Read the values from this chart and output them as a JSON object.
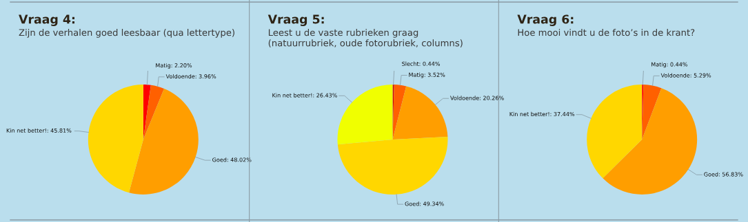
{
  "chart_data": [
    {
      "type": "pie",
      "title": "Vraag 4:",
      "subtitle": "Zijn de verhalen goed leesbaar (qua lettertype)",
      "categories": [
        "Matig",
        "Voldoende",
        "Goed",
        "Kin net better!"
      ],
      "values": [
        2.2,
        3.96,
        48.02,
        45.81
      ],
      "value_labels": [
        "2.20%",
        "3.96%",
        "48.02%",
        "45.81%"
      ],
      "colors": [
        "#ff0000",
        "#ff6000",
        "#ff9e00",
        "#ffd700"
      ],
      "legend": false
    },
    {
      "type": "pie",
      "title": "Vraag 5:",
      "subtitle": "Leest u de vaste rubrieken graag\n(natuurrubriek, oude fotorubriek, columns)",
      "categories": [
        "Slecht",
        "Matig",
        "Voldoende",
        "Goed",
        "Kin net better!"
      ],
      "values": [
        0.44,
        3.52,
        20.26,
        49.34,
        26.43
      ],
      "value_labels": [
        "0.44%",
        "3.52%",
        "20.26%",
        "49.34%",
        "26.43%"
      ],
      "colors": [
        "#cc0000",
        "#ff6000",
        "#ff9e00",
        "#ffd700",
        "#f0ff00"
      ],
      "legend": false
    },
    {
      "type": "pie",
      "title": "Vraag 6:",
      "subtitle": "Hoe mooi vindt u de foto’s in de krant?",
      "categories": [
        "Matig",
        "Voldoende",
        "Goed",
        "Kin net better!"
      ],
      "values": [
        0.44,
        5.29,
        56.83,
        37.44
      ],
      "value_labels": [
        "0.44%",
        "5.29%",
        "56.83%",
        "37.44%"
      ],
      "colors": [
        "#ff0000",
        "#ff6000",
        "#ff9e00",
        "#ffd700"
      ],
      "legend": false
    }
  ]
}
